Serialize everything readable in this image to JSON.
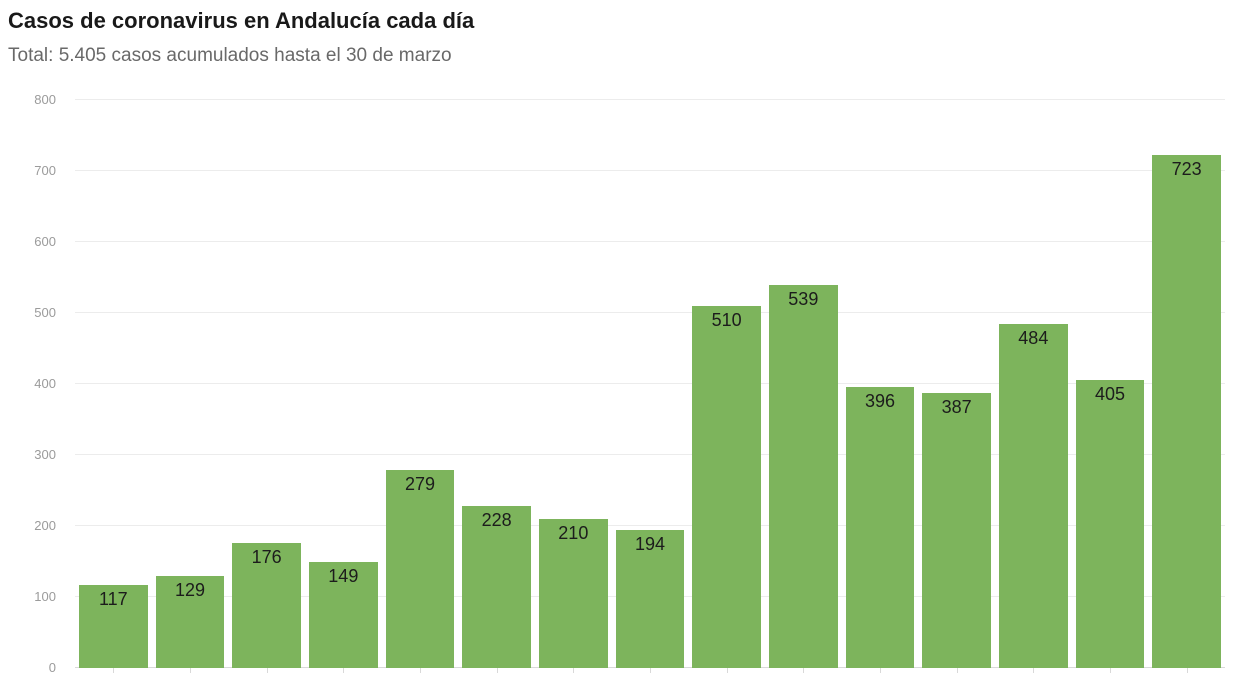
{
  "header": {
    "title": "Casos de coronavirus en Andalucía cada día",
    "subtitle": "Total: 5.405 casos acumulados hasta el 30 de marzo"
  },
  "chart_data": {
    "type": "bar",
    "title": "Casos de coronavirus en Andalucía cada día",
    "subtitle": "Total: 5.405 casos acumulados hasta el 30 de marzo",
    "values": [
      117,
      129,
      176,
      149,
      279,
      228,
      210,
      194,
      510,
      539,
      396,
      387,
      484,
      405,
      723
    ],
    "value_labels": [
      "117",
      "129",
      "176",
      "149",
      "279",
      "228",
      "210",
      "194",
      "510",
      "539",
      "396",
      "387",
      "484",
      "405",
      "723"
    ],
    "xlabel": "",
    "ylabel": "",
    "ylim": [
      0,
      800
    ],
    "yticks": [
      0,
      100,
      200,
      300,
      400,
      500,
      600,
      700,
      800
    ],
    "grid": true,
    "x_tick_marks": true,
    "x_tick_labels_visible": false,
    "legend": "none",
    "colors": {
      "bar": "#7db45c",
      "value_label": "#1c1c1c",
      "grid": "#ececec",
      "baseline": "#d9d9d9",
      "ytick_label": "#9b9b9b",
      "title": "#191919",
      "subtitle": "#696969"
    }
  }
}
